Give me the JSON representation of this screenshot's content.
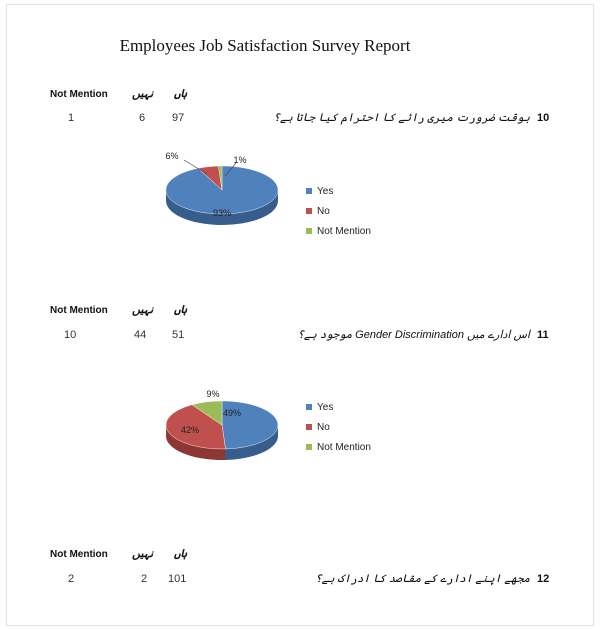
{
  "title": "Employees Job Satisfaction Survey Report",
  "colors": {
    "yes": "#4f81bd",
    "no": "#c0504d",
    "not_mention": "#9bbb59"
  },
  "legend": [
    "Yes",
    "No",
    "Not Mention"
  ],
  "questions": [
    {
      "number": "10",
      "text": "بوقت ضرورت میری رائے کا احترام کیا جاتا ہے؟",
      "headers": {
        "not_mention": "Not Mention",
        "no": "نہیں",
        "yes": "ہاں"
      },
      "counts": {
        "not_mention": "1",
        "no": "6",
        "yes": "97"
      },
      "percent_labels": {
        "yes": "93%",
        "no": "6%",
        "not_mention": "1%"
      }
    },
    {
      "number": "11",
      "text": "اس ادارے میں Gender  Discrimination موجود ہے؟",
      "headers": {
        "not_mention": "Not Mention",
        "no": "نہیں",
        "yes": "ہاں"
      },
      "counts": {
        "not_mention": "10",
        "no": "44",
        "yes": "51"
      },
      "percent_labels": {
        "yes": "49%",
        "no": "42%",
        "not_mention": "9%"
      }
    },
    {
      "number": "12",
      "text": "مجھے اپنے ادارے کے مقاصد کا ادراک ہے؟",
      "headers": {
        "not_mention": "Not Mention",
        "no": "نہیں",
        "yes": "ہاں"
      },
      "counts": {
        "not_mention": "2",
        "no": "2",
        "yes": "101"
      }
    }
  ],
  "chart_data": [
    {
      "type": "pie",
      "categories": [
        "Yes",
        "No",
        "Not Mention"
      ],
      "values": [
        93,
        6,
        1
      ],
      "data_labels": [
        "93%",
        "6%",
        "1%"
      ],
      "legend_position": "right"
    },
    {
      "type": "pie",
      "categories": [
        "Yes",
        "No",
        "Not Mention"
      ],
      "values": [
        49,
        42,
        9
      ],
      "data_labels": [
        "49%",
        "42%",
        "9%"
      ],
      "legend_position": "right"
    }
  ]
}
